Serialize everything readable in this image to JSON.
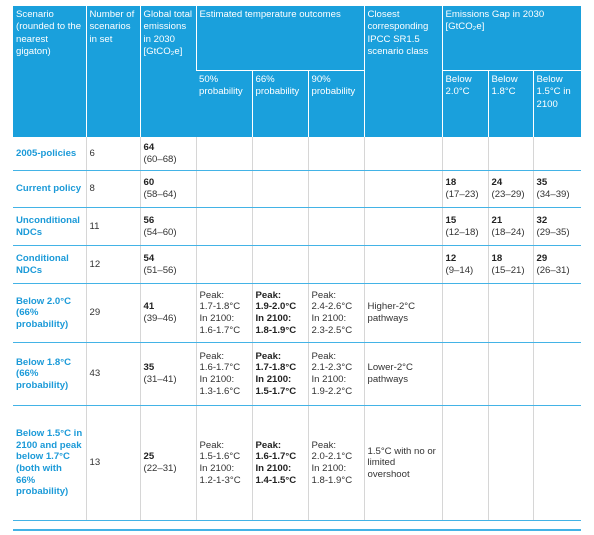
{
  "headers": {
    "scenario": "Scenario (rounded to the nearest gigaton)",
    "number": "Number of scenarios in set",
    "global": "Global total emissions in 2030 [GtCO₂e]",
    "estimated": "Estimated temperature outcomes",
    "closest": "Closest corresponding IPCC SR1.5 scenario class",
    "gap": "Emissions Gap in 2030 [GtCO₂e]",
    "p50": "50% probability",
    "p66": "66% probability",
    "p90": "90% probability",
    "below20": "Below 2.0°C",
    "below18": "Below 1.8°C",
    "below15": "Below 1.5°C in 2100"
  },
  "rows": [
    {
      "scenario": "2005-policies",
      "n": "6",
      "em": "64",
      "em_range": "(60–68)",
      "t50": [
        "",
        "",
        "",
        ""
      ],
      "t66": [
        "",
        "",
        "",
        ""
      ],
      "t90": [
        "",
        "",
        "",
        ""
      ],
      "closest": "",
      "g20": "",
      "g20r": "",
      "g18": "",
      "g18r": "",
      "g15": "",
      "g15r": ""
    },
    {
      "scenario": "Current policy",
      "n": "8",
      "em": "60",
      "em_range": "(58–64)",
      "t50": [
        "",
        "",
        "",
        ""
      ],
      "t66": [
        "",
        "",
        "",
        ""
      ],
      "t90": [
        "",
        "",
        "",
        ""
      ],
      "closest": "",
      "g20": "18",
      "g20r": "(17–23)",
      "g18": "24",
      "g18r": "(23–29)",
      "g15": "35",
      "g15r": "(34–39)"
    },
    {
      "scenario": "Unconditional NDCs",
      "n": "11",
      "em": "56",
      "em_range": "(54–60)",
      "t50": [
        "",
        "",
        "",
        ""
      ],
      "t66": [
        "",
        "",
        "",
        ""
      ],
      "t90": [
        "",
        "",
        "",
        ""
      ],
      "closest": "",
      "g20": "15",
      "g20r": "(12–18)",
      "g18": "21",
      "g18r": "(18–24)",
      "g15": "32",
      "g15r": "(29–35)"
    },
    {
      "scenario": "Conditional NDCs",
      "n": "12",
      "em": "54",
      "em_range": "(51–56)",
      "t50": [
        "",
        "",
        "",
        ""
      ],
      "t66": [
        "",
        "",
        "",
        ""
      ],
      "t90": [
        "",
        "",
        "",
        ""
      ],
      "closest": "",
      "g20": "12",
      "g20r": "(9–14)",
      "g18": "18",
      "g18r": "(15–21)",
      "g15": "29",
      "g15r": "(26–31)"
    },
    {
      "scenario": "Below 2.0°C (66% probability)",
      "n": "29",
      "em": "41",
      "em_range": "(39–46)",
      "t50": [
        "Peak:",
        "1.7-1.8°C",
        "In 2100:",
        "1.6-1.7°C"
      ],
      "t66": [
        "Peak:",
        "1.9-2.0°C",
        "In 2100:",
        "1.8-1.9°C"
      ],
      "t90": [
        "Peak:",
        "2.4-2.6°C",
        "In 2100:",
        "2.3-2.5°C"
      ],
      "closest": "Higher-2°C pathways",
      "g20": "",
      "g20r": "",
      "g18": "",
      "g18r": "",
      "g15": "",
      "g15r": ""
    },
    {
      "scenario": "Below 1.8°C (66% probability)",
      "n": "43",
      "em": "35",
      "em_range": "(31–41)",
      "t50": [
        "Peak:",
        "1.6-1.7°C",
        "In 2100:",
        "1.3-1.6°C"
      ],
      "t66": [
        "Peak:",
        "1.7-1.8°C",
        "In 2100:",
        "1.5-1.7°C"
      ],
      "t90": [
        "Peak:",
        "2.1-2.3°C",
        "In 2100:",
        "1.9-2.2°C"
      ],
      "closest": "Lower-2°C pathways",
      "g20": "",
      "g20r": "",
      "g18": "",
      "g18r": "",
      "g15": "",
      "g15r": ""
    },
    {
      "scenario": "Below 1.5°C in 2100 and peak below 1.7°C (both with 66% probability)",
      "n": "13",
      "em": "25",
      "em_range": "(22–31)",
      "t50": [
        "Peak:",
        "1.5-1.6°C",
        "In 2100:",
        "1.2-1-3°C"
      ],
      "t66": [
        "Peak:",
        "1.6-1.7°C",
        "In 2100:",
        "1.4-1.5°C"
      ],
      "t90": [
        "Peak:",
        "2.0-2.1°C",
        "In 2100:",
        "1.8-1.9°C"
      ],
      "closest": "1.5°C with no or limited overshoot",
      "g20": "",
      "g20r": "",
      "g18": "",
      "g18r": "",
      "g15": "",
      "g15r": ""
    }
  ],
  "colors": {
    "header_bg": "#1aa0dc",
    "scenario_text": "#1b9ad8",
    "rule": "#43b3e6"
  }
}
